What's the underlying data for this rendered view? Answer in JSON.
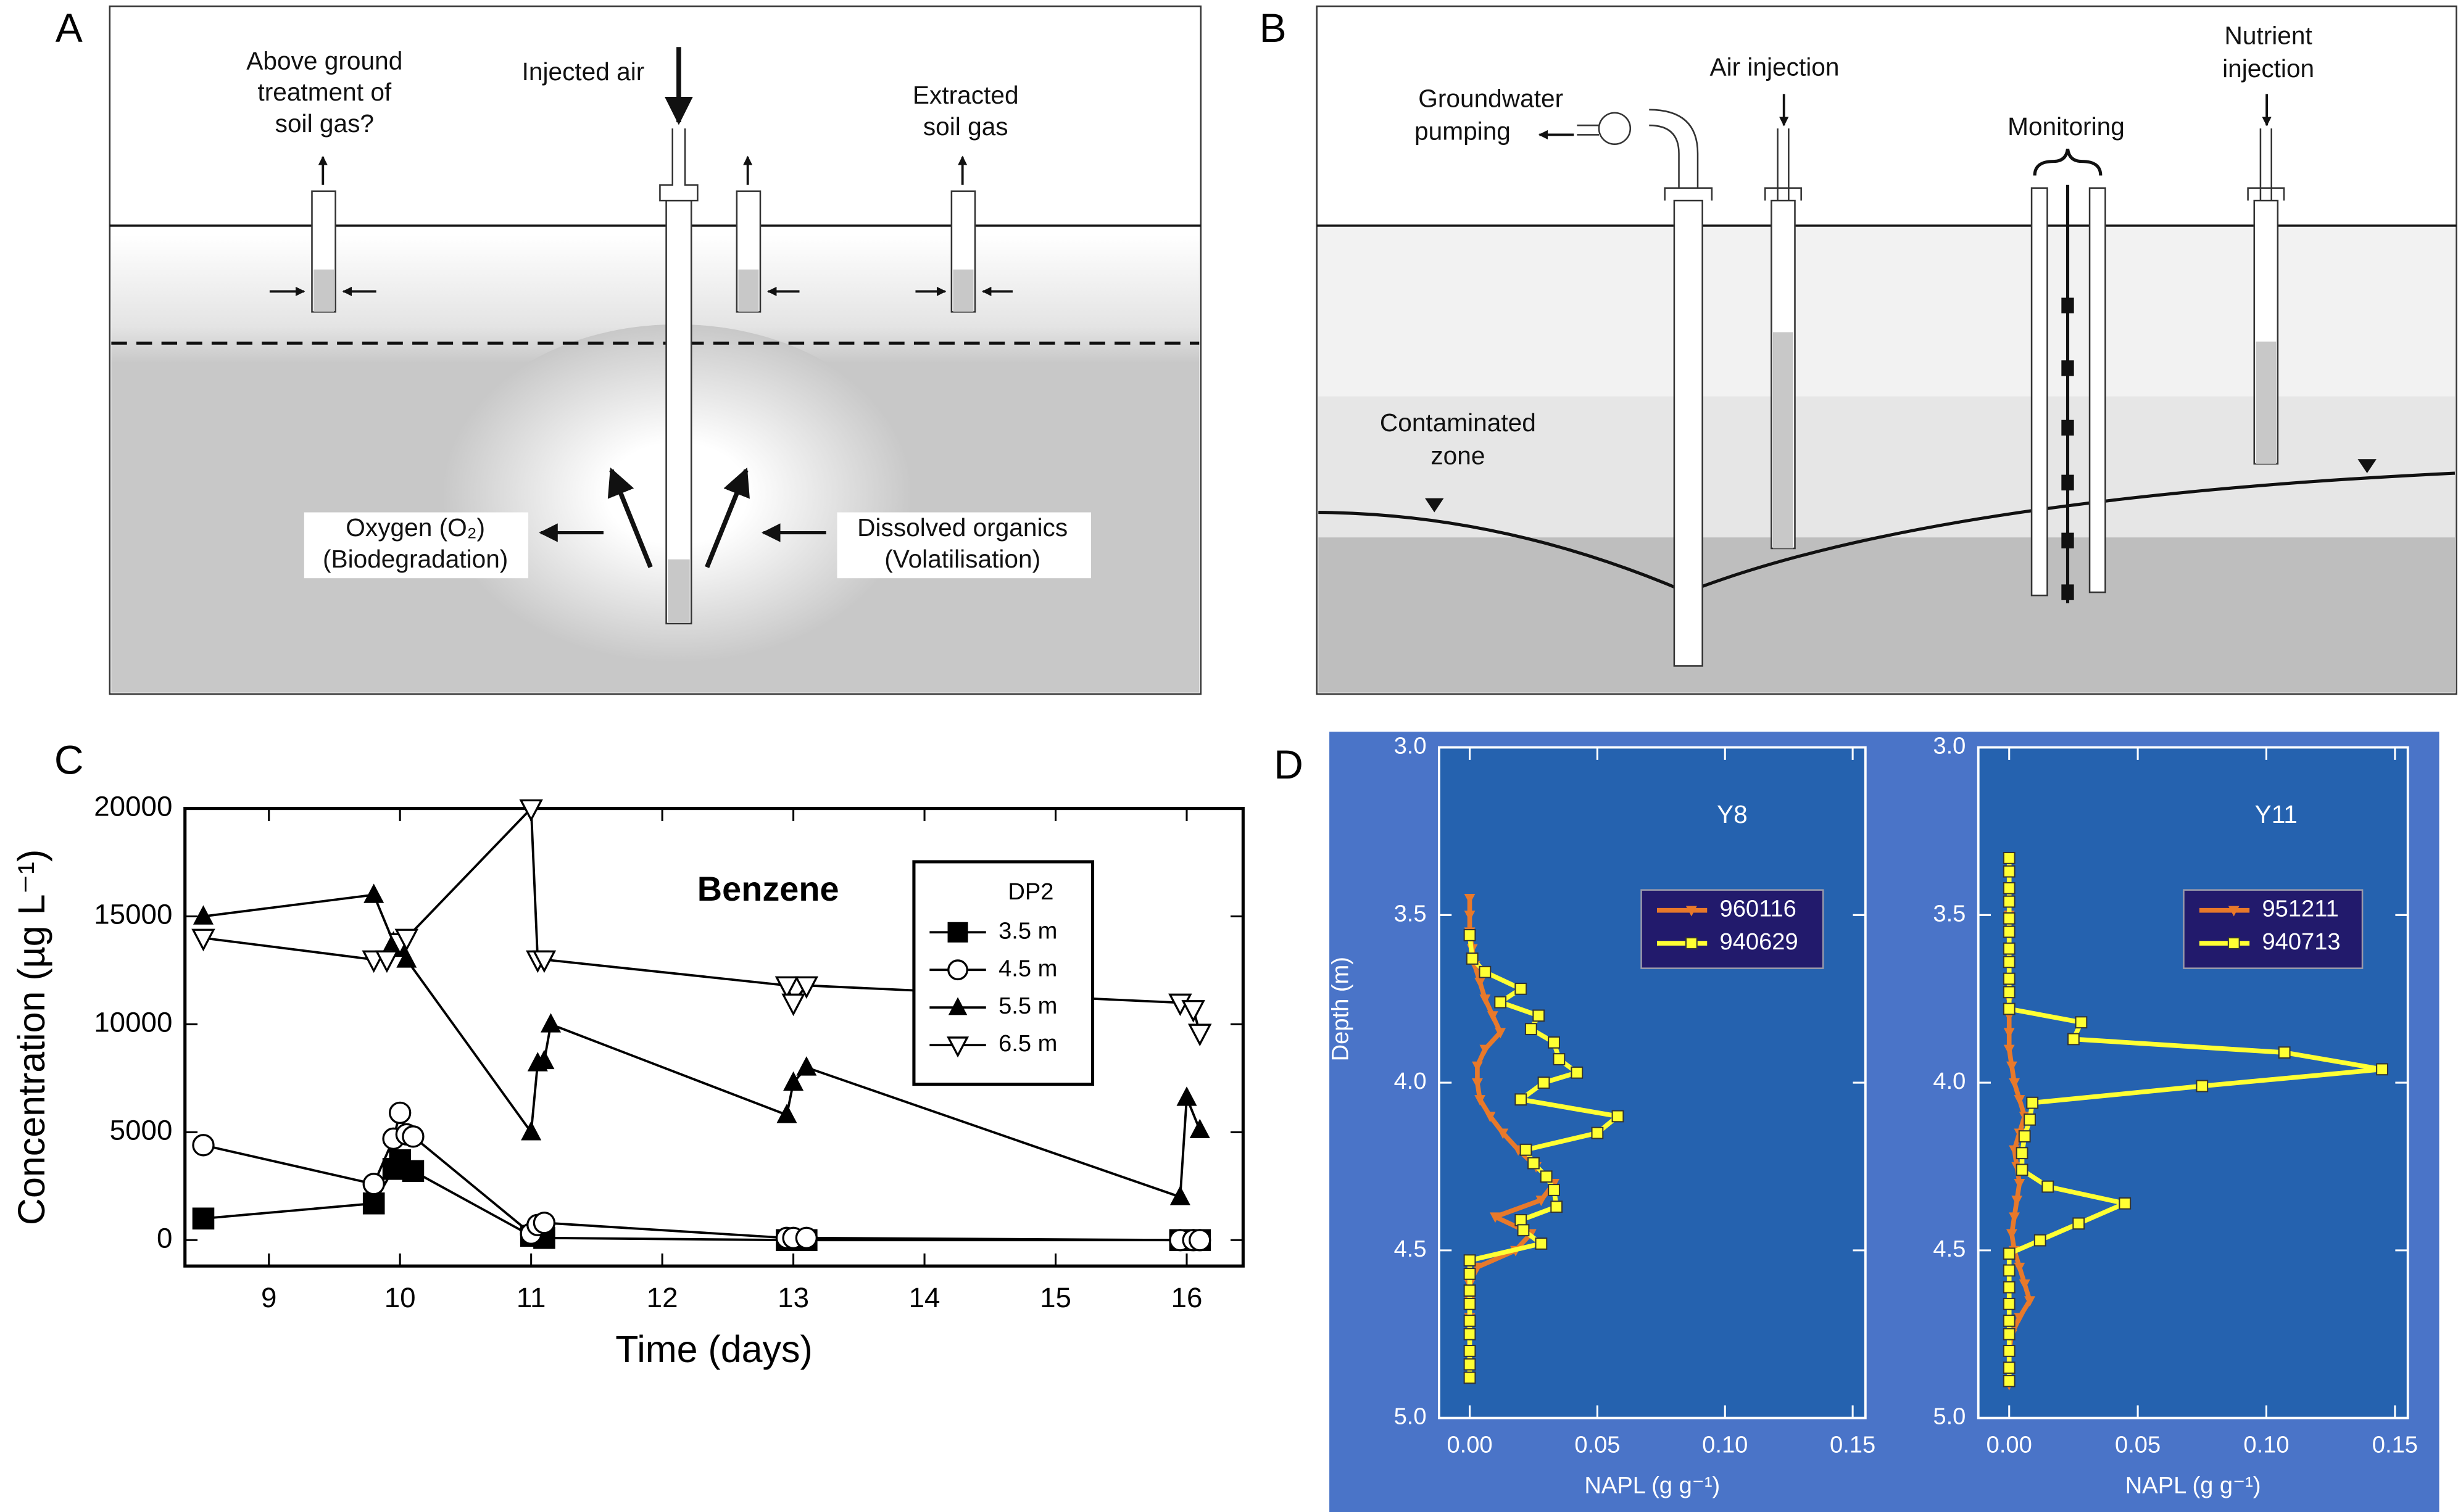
{
  "panel_labels": {
    "a": "A",
    "b": "B",
    "c": "C",
    "d": "D"
  },
  "diagram_a": {
    "labels": [
      {
        "lines": [
          "Above ground",
          "treatment of",
          "soil gas?"
        ]
      },
      {
        "lines": [
          "Injected air"
        ]
      },
      {
        "lines": [
          "Extracted",
          "soil gas"
        ]
      },
      {
        "lines": [
          "Oxygen (O₂)",
          "(Biodegradation)"
        ]
      },
      {
        "lines": [
          "Dissolved organics",
          "(Volatilisation)"
        ]
      }
    ]
  },
  "diagram_b": {
    "labels": [
      {
        "lines": [
          "Groundwater",
          "pumping"
        ]
      },
      {
        "lines": [
          "Air injection"
        ]
      },
      {
        "lines": [
          "Monitoring"
        ]
      },
      {
        "lines": [
          "Nutrient",
          "injection"
        ]
      },
      {
        "lines": [
          "Contaminated",
          "zone"
        ]
      }
    ]
  },
  "chart_data": [
    {
      "type": "line",
      "annotation": "Benzene",
      "xlabel": "Time (days)",
      "ylabel": "Concentration  (µg L⁻¹)",
      "xlim": [
        8.36,
        16.43
      ],
      "xticks": [
        9,
        10,
        11,
        12,
        13,
        14,
        15,
        16
      ],
      "ylim": [
        -1200,
        20000
      ],
      "yticks": [
        0,
        5000,
        10000,
        15000,
        20000
      ],
      "legend": "upper right",
      "legend_title": "DP2",
      "series": [
        {
          "name": "3.5 m",
          "color": "#000000",
          "marker": "square",
          "x": [
            8.5,
            9.8,
            9.95,
            10.0,
            10.1,
            11.0,
            11.1,
            12.95,
            13.0,
            13.1,
            15.95,
            16.05,
            16.1
          ],
          "values": [
            1000,
            1700,
            3300,
            3700,
            3200,
            200,
            100,
            0,
            0,
            0,
            0,
            0,
            0
          ]
        },
        {
          "name": "4.5 m",
          "color": "#000000",
          "marker": "circle-open",
          "x": [
            8.5,
            9.8,
            9.95,
            10.0,
            10.05,
            10.1,
            11.0,
            11.05,
            11.1,
            12.95,
            13.0,
            13.1,
            15.95,
            16.05,
            16.1
          ],
          "values": [
            4400,
            2600,
            4700,
            5900,
            4900,
            4800,
            300,
            700,
            800,
            100,
            100,
            100,
            0,
            0,
            0
          ]
        },
        {
          "name": "5.5 m",
          "color": "#000000",
          "marker": "triangle",
          "x": [
            8.5,
            9.8,
            9.95,
            10.0,
            10.05,
            11.0,
            11.05,
            11.1,
            11.15,
            12.95,
            13.0,
            13.1,
            15.95,
            16.0,
            16.1
          ],
          "values": [
            15000,
            16000,
            13800,
            13500,
            13000,
            5000,
            8200,
            8300,
            10000,
            5800,
            7300,
            8000,
            2000,
            6600,
            5100
          ]
        },
        {
          "name": "6.5 m",
          "color": "#000000",
          "marker": "triangle-down-open",
          "x": [
            8.5,
            9.8,
            9.9,
            10.0,
            10.05,
            11.0,
            11.05,
            11.1,
            12.95,
            13.0,
            13.1,
            15.95,
            16.05,
            16.1
          ],
          "values": [
            14000,
            13000,
            13000,
            13800,
            14000,
            20000,
            13000,
            13000,
            11800,
            11000,
            11800,
            11000,
            10700,
            9600
          ]
        }
      ]
    },
    {
      "type": "profile",
      "annotation": "Y8",
      "xlabel": "NAPL  (g g⁻¹)",
      "ylabel": "Depth  (m)",
      "xlim": [
        -0.012,
        0.155
      ],
      "xticks": [
        {
          "value": 0,
          "label": "0.00"
        },
        0.05,
        {
          "value": 0.1,
          "label": "0.10"
        },
        0.15
      ],
      "ylim": [
        3.0,
        5.0
      ],
      "yticks": [
        {
          "value": 3,
          "label": "3.0"
        },
        3.5,
        {
          "value": 4,
          "label": "4.0"
        },
        4.5,
        {
          "value": 5,
          "label": "5.0"
        }
      ],
      "invert_y": true,
      "legend": "upper right",
      "series": [
        {
          "name": "960116",
          "color": "#e8792a",
          "marker": "triangle-down",
          "x": [
            0,
            0,
            0,
            0.001,
            0.002,
            0.004,
            0.006,
            0.009,
            0.012,
            0.006,
            0.003,
            0.003,
            0.004,
            0.008,
            0.013,
            0.019,
            0.026,
            0.033,
            0.028,
            0.01,
            0.024,
            0.018,
            0.003,
            0,
            0,
            0,
            0,
            0,
            0,
            0
          ],
          "values": [
            3.45,
            3.5,
            3.55,
            3.6,
            3.65,
            3.7,
            3.75,
            3.8,
            3.85,
            3.9,
            3.95,
            4.0,
            4.05,
            4.1,
            4.15,
            4.2,
            4.25,
            4.3,
            4.35,
            4.4,
            4.45,
            4.5,
            4.55,
            4.6,
            4.65,
            4.7,
            4.75,
            4.8,
            4.85,
            4.88
          ]
        },
        {
          "name": "940629",
          "color": "#ffff33",
          "marker": "square",
          "x": [
            0,
            0.001,
            0.006,
            0.02,
            0.012,
            0.027,
            0.024,
            0.033,
            0.035,
            0.042,
            0.029,
            0.02,
            0.058,
            0.05,
            0.022,
            0.025,
            0.03,
            0.033,
            0.034,
            0.02,
            0.021,
            0.028,
            0,
            0,
            0,
            0,
            0,
            0,
            0,
            0,
            0
          ],
          "values": [
            3.56,
            3.63,
            3.67,
            3.72,
            3.76,
            3.8,
            3.84,
            3.88,
            3.93,
            3.97,
            4.0,
            4.05,
            4.1,
            4.15,
            4.2,
            4.24,
            4.28,
            4.32,
            4.37,
            4.41,
            4.44,
            4.48,
            4.53,
            4.57,
            4.62,
            4.66,
            4.71,
            4.75,
            4.8,
            4.84,
            4.88
          ]
        }
      ]
    },
    {
      "type": "profile",
      "annotation": "Y11",
      "xlabel": "NAPL  (g g⁻¹)",
      "xlim": [
        -0.012,
        0.155
      ],
      "xticks": [
        {
          "value": 0,
          "label": "0.00"
        },
        0.05,
        {
          "value": 0.1,
          "label": "0.10"
        },
        0.15
      ],
      "ylim": [
        3.0,
        5.0
      ],
      "yticks": [
        {
          "value": 3,
          "label": "3.0"
        },
        3.5,
        {
          "value": 4,
          "label": "4.0"
        },
        4.5,
        {
          "value": 5,
          "label": "5.0"
        }
      ],
      "invert_y": true,
      "legend": "upper right",
      "series": [
        {
          "name": "951211",
          "color": "#e8792a",
          "marker": "triangle-down",
          "x": [
            0,
            0,
            0,
            0,
            0,
            0,
            0,
            0,
            0,
            0.001,
            0.002,
            0.004,
            0.006,
            0.004,
            0.002,
            0.003,
            0.004,
            0.003,
            0.002,
            0.001,
            0.002,
            0.004,
            0.006,
            0.008,
            0.004,
            0.001,
            0,
            0,
            0
          ],
          "values": [
            3.5,
            3.55,
            3.6,
            3.65,
            3.7,
            3.75,
            3.8,
            3.85,
            3.9,
            3.95,
            4.0,
            4.05,
            4.1,
            4.15,
            4.2,
            4.25,
            4.3,
            4.35,
            4.4,
            4.45,
            4.5,
            4.55,
            4.6,
            4.65,
            4.7,
            4.75,
            4.8,
            4.85,
            4.9
          ]
        },
        {
          "name": "940713",
          "color": "#ffff33",
          "marker": "square",
          "x": [
            0,
            0,
            0,
            0,
            0,
            0,
            0,
            0,
            0,
            0,
            0,
            0.028,
            0.025,
            0.107,
            0.145,
            0.075,
            0.009,
            0.008,
            0.006,
            0.005,
            0.005,
            0.015,
            0.045,
            0.027,
            0.012,
            0,
            0,
            0,
            0,
            0,
            0,
            0,
            0,
            0
          ],
          "values": [
            3.33,
            3.37,
            3.42,
            3.46,
            3.51,
            3.55,
            3.6,
            3.64,
            3.69,
            3.73,
            3.78,
            3.82,
            3.87,
            3.91,
            3.96,
            4.01,
            4.06,
            4.11,
            4.16,
            4.21,
            4.26,
            4.31,
            4.36,
            4.42,
            4.47,
            4.51,
            4.56,
            4.61,
            4.66,
            4.71,
            4.75,
            4.8,
            4.85,
            4.89
          ]
        }
      ]
    }
  ]
}
